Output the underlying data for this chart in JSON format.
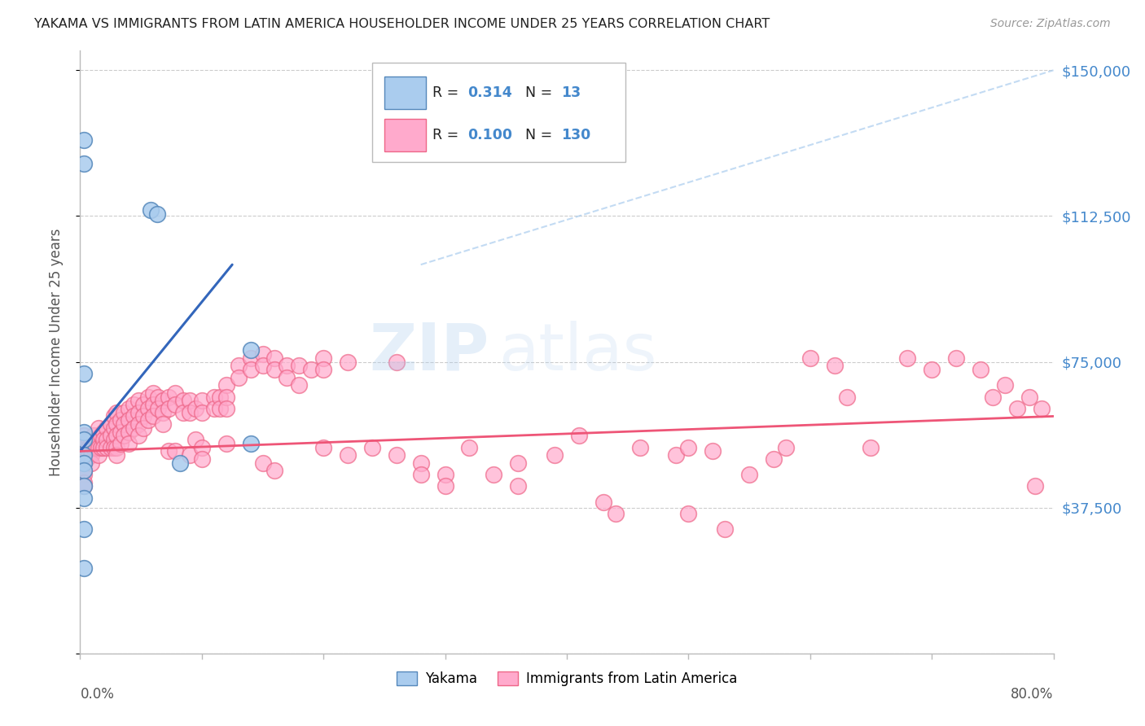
{
  "title": "YAKAMA VS IMMIGRANTS FROM LATIN AMERICA HOUSEHOLDER INCOME UNDER 25 YEARS CORRELATION CHART",
  "source": "Source: ZipAtlas.com",
  "ylabel": "Householder Income Under 25 years",
  "y_ticks": [
    0,
    37500,
    75000,
    112500,
    150000
  ],
  "y_tick_labels": [
    "",
    "$37,500",
    "$75,000",
    "$112,500",
    "$150,000"
  ],
  "xlim": [
    0.0,
    0.8
  ],
  "ylim": [
    0,
    155000
  ],
  "watermark_zip": "ZIP",
  "watermark_atlas": "atlas",
  "blue_color": "#AACCEE",
  "blue_edge": "#5588BB",
  "pink_color": "#FFAACC",
  "pink_edge": "#EE6688",
  "line_blue_color": "#3366BB",
  "line_pink_color": "#EE5577",
  "dashed_color": "#AACCEE",
  "title_color": "#222222",
  "right_label_color": "#4488CC",
  "legend_text_color": "#222222",
  "yakama_points": [
    [
      0.003,
      132000
    ],
    [
      0.003,
      126000
    ],
    [
      0.058,
      114000
    ],
    [
      0.063,
      113000
    ],
    [
      0.003,
      72000
    ],
    [
      0.003,
      57000
    ],
    [
      0.003,
      55000
    ],
    [
      0.003,
      51000
    ],
    [
      0.003,
      49000
    ],
    [
      0.003,
      47000
    ],
    [
      0.003,
      43000
    ],
    [
      0.003,
      40000
    ],
    [
      0.003,
      32000
    ],
    [
      0.082,
      49000
    ],
    [
      0.003,
      22000
    ],
    [
      0.14,
      78000
    ],
    [
      0.14,
      54000
    ]
  ],
  "latin_points": [
    [
      0.003,
      56000
    ],
    [
      0.003,
      54000
    ],
    [
      0.003,
      52000
    ],
    [
      0.003,
      50000
    ],
    [
      0.003,
      49000
    ],
    [
      0.003,
      47000
    ],
    [
      0.003,
      46000
    ],
    [
      0.003,
      44000
    ],
    [
      0.003,
      43000
    ],
    [
      0.005,
      54000
    ],
    [
      0.005,
      52000
    ],
    [
      0.005,
      50000
    ],
    [
      0.007,
      55000
    ],
    [
      0.007,
      53000
    ],
    [
      0.007,
      51000
    ],
    [
      0.009,
      55000
    ],
    [
      0.009,
      53000
    ],
    [
      0.009,
      51000
    ],
    [
      0.009,
      49000
    ],
    [
      0.011,
      56000
    ],
    [
      0.011,
      53000
    ],
    [
      0.013,
      55000
    ],
    [
      0.013,
      53000
    ],
    [
      0.015,
      58000
    ],
    [
      0.015,
      55000
    ],
    [
      0.015,
      53000
    ],
    [
      0.015,
      51000
    ],
    [
      0.017,
      56000
    ],
    [
      0.017,
      53000
    ],
    [
      0.019,
      57000
    ],
    [
      0.019,
      55000
    ],
    [
      0.019,
      53000
    ],
    [
      0.022,
      58000
    ],
    [
      0.022,
      55000
    ],
    [
      0.022,
      53000
    ],
    [
      0.025,
      59000
    ],
    [
      0.025,
      56000
    ],
    [
      0.025,
      53000
    ],
    [
      0.028,
      61000
    ],
    [
      0.028,
      58000
    ],
    [
      0.028,
      55000
    ],
    [
      0.028,
      53000
    ],
    [
      0.03,
      62000
    ],
    [
      0.03,
      59000
    ],
    [
      0.03,
      56000
    ],
    [
      0.03,
      53000
    ],
    [
      0.03,
      51000
    ],
    [
      0.033,
      60000
    ],
    [
      0.033,
      57000
    ],
    [
      0.033,
      54000
    ],
    [
      0.036,
      62000
    ],
    [
      0.036,
      59000
    ],
    [
      0.036,
      56000
    ],
    [
      0.04,
      63000
    ],
    [
      0.04,
      60000
    ],
    [
      0.04,
      57000
    ],
    [
      0.04,
      54000
    ],
    [
      0.044,
      64000
    ],
    [
      0.044,
      61000
    ],
    [
      0.044,
      58000
    ],
    [
      0.048,
      65000
    ],
    [
      0.048,
      62000
    ],
    [
      0.048,
      59000
    ],
    [
      0.048,
      56000
    ],
    [
      0.052,
      64000
    ],
    [
      0.052,
      61000
    ],
    [
      0.052,
      58000
    ],
    [
      0.056,
      66000
    ],
    [
      0.056,
      63000
    ],
    [
      0.056,
      60000
    ],
    [
      0.06,
      67000
    ],
    [
      0.06,
      64000
    ],
    [
      0.06,
      61000
    ],
    [
      0.064,
      66000
    ],
    [
      0.064,
      63000
    ],
    [
      0.068,
      65000
    ],
    [
      0.068,
      62000
    ],
    [
      0.068,
      59000
    ],
    [
      0.073,
      66000
    ],
    [
      0.073,
      63000
    ],
    [
      0.073,
      52000
    ],
    [
      0.078,
      67000
    ],
    [
      0.078,
      64000
    ],
    [
      0.078,
      52000
    ],
    [
      0.085,
      65000
    ],
    [
      0.085,
      62000
    ],
    [
      0.09,
      65000
    ],
    [
      0.09,
      62000
    ],
    [
      0.09,
      51000
    ],
    [
      0.095,
      63000
    ],
    [
      0.095,
      55000
    ],
    [
      0.1,
      65000
    ],
    [
      0.1,
      62000
    ],
    [
      0.1,
      53000
    ],
    [
      0.1,
      50000
    ],
    [
      0.11,
      66000
    ],
    [
      0.11,
      63000
    ],
    [
      0.115,
      66000
    ],
    [
      0.115,
      63000
    ],
    [
      0.12,
      69000
    ],
    [
      0.12,
      66000
    ],
    [
      0.12,
      63000
    ],
    [
      0.12,
      54000
    ],
    [
      0.13,
      74000
    ],
    [
      0.13,
      71000
    ],
    [
      0.14,
      76000
    ],
    [
      0.14,
      73000
    ],
    [
      0.15,
      77000
    ],
    [
      0.15,
      74000
    ],
    [
      0.15,
      49000
    ],
    [
      0.16,
      76000
    ],
    [
      0.16,
      73000
    ],
    [
      0.16,
      47000
    ],
    [
      0.17,
      74000
    ],
    [
      0.17,
      71000
    ],
    [
      0.18,
      74000
    ],
    [
      0.18,
      69000
    ],
    [
      0.19,
      73000
    ],
    [
      0.2,
      76000
    ],
    [
      0.2,
      73000
    ],
    [
      0.2,
      53000
    ],
    [
      0.22,
      75000
    ],
    [
      0.22,
      51000
    ],
    [
      0.24,
      53000
    ],
    [
      0.26,
      75000
    ],
    [
      0.26,
      51000
    ],
    [
      0.28,
      49000
    ],
    [
      0.28,
      46000
    ],
    [
      0.3,
      46000
    ],
    [
      0.3,
      43000
    ],
    [
      0.32,
      53000
    ],
    [
      0.34,
      46000
    ],
    [
      0.36,
      49000
    ],
    [
      0.36,
      43000
    ],
    [
      0.39,
      51000
    ],
    [
      0.41,
      56000
    ],
    [
      0.43,
      39000
    ],
    [
      0.44,
      36000
    ],
    [
      0.46,
      53000
    ],
    [
      0.49,
      51000
    ],
    [
      0.5,
      53000
    ],
    [
      0.5,
      36000
    ],
    [
      0.52,
      52000
    ],
    [
      0.53,
      32000
    ],
    [
      0.55,
      46000
    ],
    [
      0.57,
      50000
    ],
    [
      0.58,
      53000
    ],
    [
      0.6,
      76000
    ],
    [
      0.62,
      74000
    ],
    [
      0.63,
      66000
    ],
    [
      0.65,
      53000
    ],
    [
      0.68,
      76000
    ],
    [
      0.7,
      73000
    ],
    [
      0.72,
      76000
    ],
    [
      0.74,
      73000
    ],
    [
      0.75,
      66000
    ],
    [
      0.76,
      69000
    ],
    [
      0.77,
      63000
    ],
    [
      0.78,
      66000
    ],
    [
      0.785,
      43000
    ],
    [
      0.79,
      63000
    ]
  ],
  "blue_line_x": [
    0.0,
    0.125
  ],
  "blue_line_y": [
    52000,
    100000
  ],
  "pink_line_x": [
    0.0,
    0.8
  ],
  "pink_line_y": [
    52000,
    61000
  ],
  "dashed_line_x": [
    0.28,
    0.8
  ],
  "dashed_line_y": [
    100000,
    150000
  ]
}
